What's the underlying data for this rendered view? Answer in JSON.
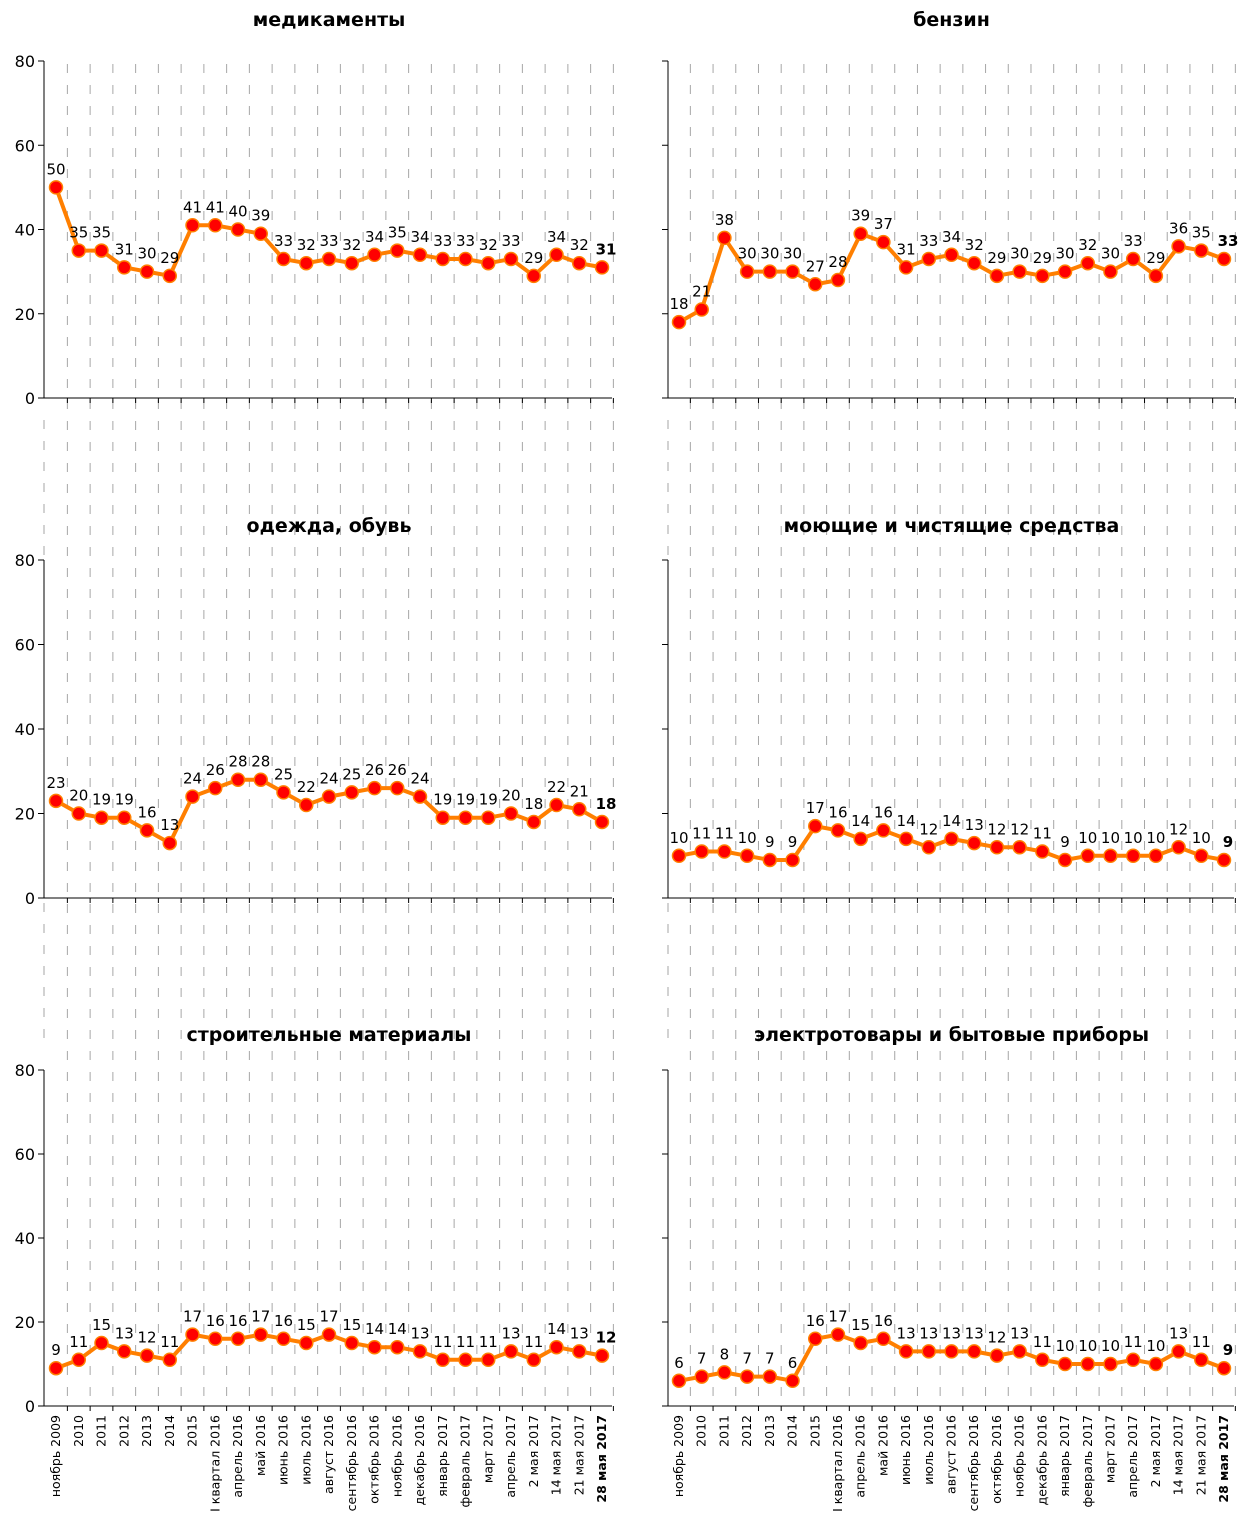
{
  "colors": {
    "line": "#ff7f00",
    "marker": "#ff0000",
    "grid": "#a6a6a6",
    "axis": "#000000"
  },
  "chart_data": {
    "type": "line",
    "layout": "small multiples 3x2",
    "categories": [
      "ноябрь 2009",
      "2010",
      "2011",
      "2012",
      "2013",
      "2014",
      "2015",
      "I квартал 2016",
      "апрель 2016",
      "май 2016",
      "июнь 2016",
      "июль 2016",
      "август 2016",
      "сентябрь 2016",
      "октябрь 2016",
      "ноябрь 2016",
      "декабрь 2016",
      "январь 2017",
      "февраль 2017",
      "март 2017",
      "апрель 2017",
      "2 мая 2017",
      "14 мая 2017",
      "21 мая 2017",
      "28 мая 2017"
    ],
    "ylim": [
      0,
      80
    ],
    "yticks": [
      0,
      20,
      40,
      60,
      80
    ],
    "grid": "vertical dashed",
    "panels": [
      {
        "title": "медикаменты",
        "values": [
          50,
          35,
          35,
          31,
          30,
          29,
          41,
          41,
          40,
          39,
          33,
          32,
          33,
          32,
          34,
          35,
          34,
          33,
          33,
          32,
          33,
          29,
          34,
          32,
          31
        ]
      },
      {
        "title": "бензин",
        "values": [
          18,
          21,
          38,
          30,
          30,
          30,
          27,
          28,
          39,
          37,
          31,
          33,
          34,
          32,
          29,
          30,
          29,
          30,
          32,
          30,
          33,
          29,
          36,
          35,
          33
        ]
      },
      {
        "title": "одежда, обувь",
        "values": [
          23,
          20,
          19,
          19,
          16,
          13,
          24,
          26,
          28,
          28,
          25,
          22,
          24,
          25,
          26,
          26,
          24,
          19,
          19,
          19,
          20,
          18,
          22,
          21,
          18
        ]
      },
      {
        "title": "моющие и чистящие средства",
        "values": [
          10,
          11,
          11,
          10,
          9,
          9,
          17,
          16,
          14,
          16,
          14,
          12,
          14,
          13,
          12,
          12,
          11,
          9,
          10,
          10,
          10,
          10,
          12,
          10,
          9
        ]
      },
      {
        "title": "строительные материалы",
        "values": [
          9,
          11,
          15,
          13,
          12,
          11,
          17,
          16,
          16,
          17,
          16,
          15,
          17,
          15,
          14,
          14,
          13,
          11,
          11,
          11,
          13,
          11,
          14,
          13,
          12
        ]
      },
      {
        "title": "электротовары и бытовые приборы",
        "values": [
          6,
          7,
          8,
          7,
          7,
          6,
          16,
          17,
          15,
          16,
          13,
          13,
          13,
          13,
          12,
          13,
          11,
          10,
          10,
          10,
          11,
          10,
          13,
          11,
          9
        ]
      }
    ]
  }
}
